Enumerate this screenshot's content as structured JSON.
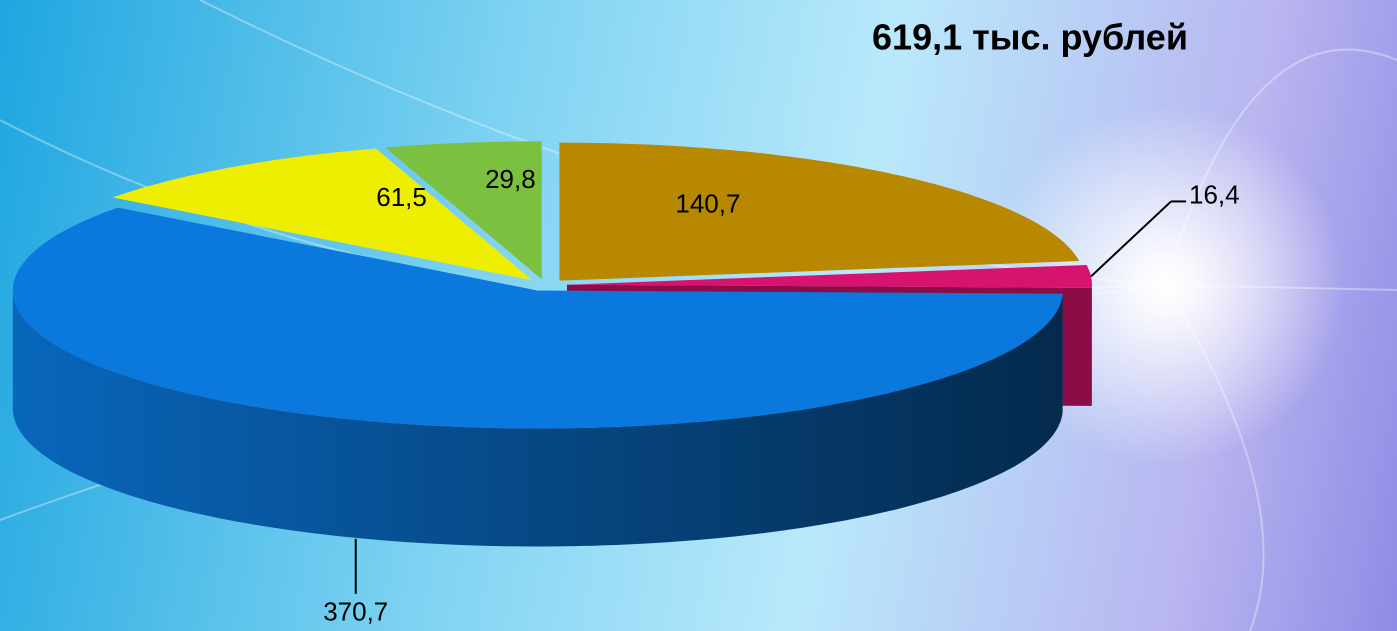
{
  "chart_data": {
    "type": "pie3d",
    "title": "619,1 тыс. рублей",
    "series": [
      {
        "name": null,
        "values": [
          140.7,
          16.4,
          370.7,
          61.5,
          29.8
        ],
        "value_labels": [
          "140,7",
          "16,4",
          "370,7",
          "61,5",
          "29,8"
        ],
        "colors": [
          "#b88800",
          "#d8136f",
          "#0a78dc",
          "#eeee00",
          "#7cc040"
        ]
      }
    ]
  }
}
